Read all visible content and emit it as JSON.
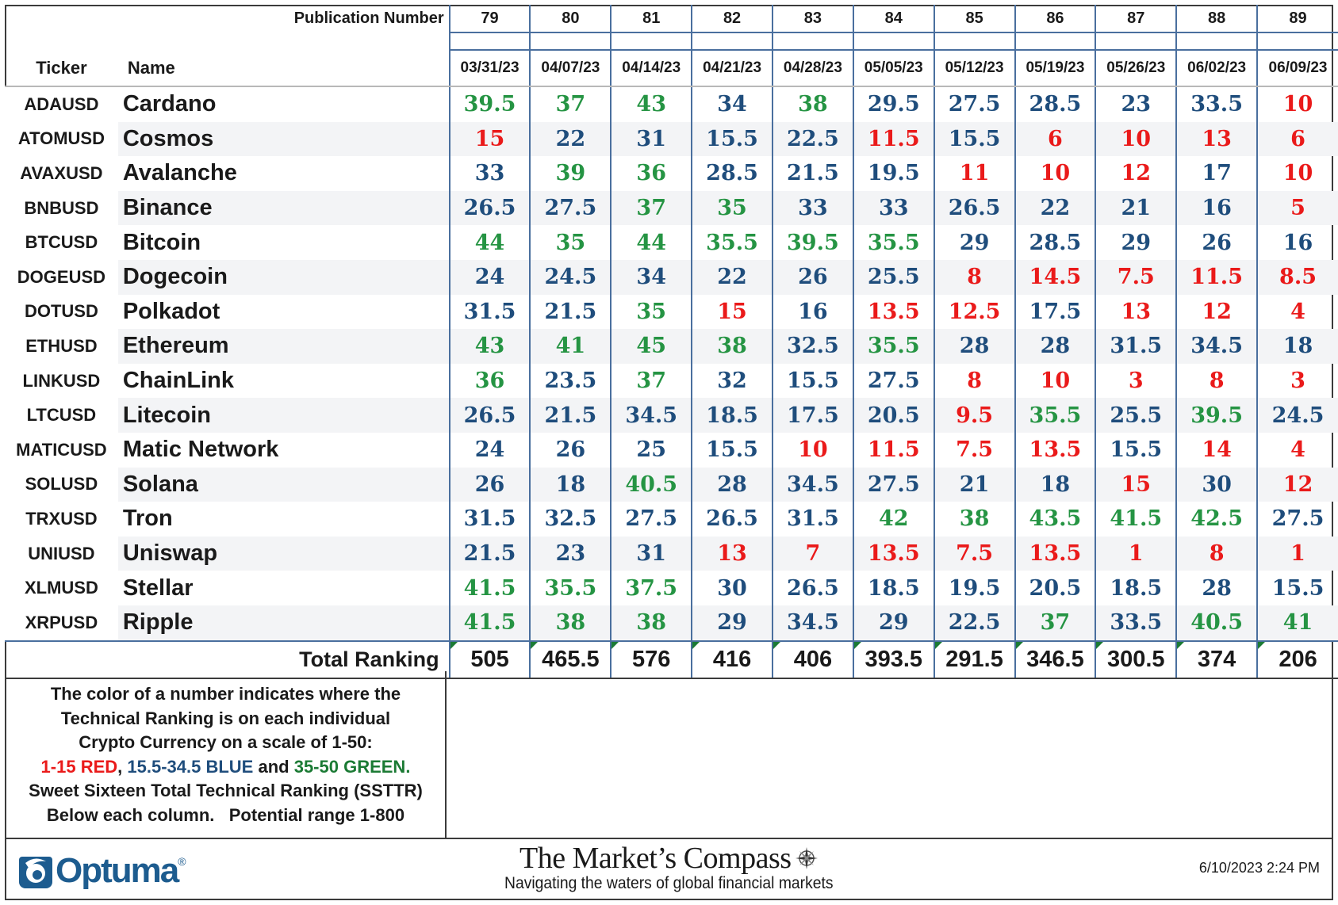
{
  "header": {
    "pub_label": "Publication Number",
    "ticker_label": "Ticker",
    "name_label": "Name"
  },
  "publications": [
    "79",
    "80",
    "81",
    "82",
    "83",
    "84",
    "85",
    "86",
    "87",
    "88",
    "89"
  ],
  "dates": [
    "03/31/23",
    "04/07/23",
    "04/14/23",
    "04/21/23",
    "04/28/23",
    "05/05/23",
    "05/12/23",
    "05/19/23",
    "05/26/23",
    "06/02/23",
    "06/09/23"
  ],
  "colors": {
    "red": "#ea1a1a",
    "blue": "#1f4d7c",
    "green": "#259443"
  },
  "chart_data": {
    "type": "table",
    "columns": [
      "03/31/23",
      "04/07/23",
      "04/14/23",
      "04/21/23",
      "04/28/23",
      "05/05/23",
      "05/12/23",
      "05/19/23",
      "05/26/23",
      "06/02/23",
      "06/09/23"
    ],
    "rows": [
      {
        "ticker": "ADAUSD",
        "name": "Cardano",
        "values": [
          "39.5",
          "37",
          "43",
          "34",
          "38",
          "29.5",
          "27.5",
          "28.5",
          "23",
          "33.5",
          "10"
        ]
      },
      {
        "ticker": "ATOMUSD",
        "name": "Cosmos",
        "values": [
          "15",
          "22",
          "31",
          "15.5",
          "22.5",
          "11.5",
          "15.5",
          "6",
          "10",
          "13",
          "6"
        ]
      },
      {
        "ticker": "AVAXUSD",
        "name": "Avalanche",
        "values": [
          "33",
          "39",
          "36",
          "28.5",
          "21.5",
          "19.5",
          "11",
          "10",
          "12",
          "17",
          "10"
        ]
      },
      {
        "ticker": "BNBUSD",
        "name": "Binance",
        "values": [
          "26.5",
          "27.5",
          "37",
          "35",
          "33",
          "33",
          "26.5",
          "22",
          "21",
          "16",
          "5"
        ]
      },
      {
        "ticker": "BTCUSD",
        "name": "Bitcoin",
        "values": [
          "44",
          "35",
          "44",
          "35.5",
          "39.5",
          "35.5",
          "29",
          "28.5",
          "29",
          "26",
          "16"
        ]
      },
      {
        "ticker": "DOGEUSD",
        "name": "Dogecoin",
        "values": [
          "24",
          "24.5",
          "34",
          "22",
          "26",
          "25.5",
          "8",
          "14.5",
          "7.5",
          "11.5",
          "8.5"
        ]
      },
      {
        "ticker": "DOTUSD",
        "name": "Polkadot",
        "values": [
          "31.5",
          "21.5",
          "35",
          "15",
          "16",
          "13.5",
          "12.5",
          "17.5",
          "13",
          "12",
          "4"
        ]
      },
      {
        "ticker": "ETHUSD",
        "name": "Ethereum",
        "values": [
          "43",
          "41",
          "45",
          "38",
          "32.5",
          "35.5",
          "28",
          "28",
          "31.5",
          "34.5",
          "18"
        ]
      },
      {
        "ticker": "LINKUSD",
        "name": "ChainLink",
        "values": [
          "36",
          "23.5",
          "37",
          "32",
          "15.5",
          "27.5",
          "8",
          "10",
          "3",
          "8",
          "3"
        ]
      },
      {
        "ticker": "LTCUSD",
        "name": "Litecoin",
        "values": [
          "26.5",
          "21.5",
          "34.5",
          "18.5",
          "17.5",
          "20.5",
          "9.5",
          "35.5",
          "25.5",
          "39.5",
          "24.5"
        ]
      },
      {
        "ticker": "MATICUSD",
        "name": "Matic Network",
        "values": [
          "24",
          "26",
          "25",
          "15.5",
          "10",
          "11.5",
          "7.5",
          "13.5",
          "15.5",
          "14",
          "4"
        ]
      },
      {
        "ticker": "SOLUSD",
        "name": "Solana",
        "values": [
          "26",
          "18",
          "40.5",
          "28",
          "34.5",
          "27.5",
          "21",
          "18",
          "15",
          "30",
          "12"
        ]
      },
      {
        "ticker": "TRXUSD",
        "name": "Tron",
        "values": [
          "31.5",
          "32.5",
          "27.5",
          "26.5",
          "31.5",
          "42",
          "38",
          "43.5",
          "41.5",
          "42.5",
          "27.5"
        ]
      },
      {
        "ticker": "UNIUSD",
        "name": "Uniswap",
        "values": [
          "21.5",
          "23",
          "31",
          "13",
          "7",
          "13.5",
          "7.5",
          "13.5",
          "1",
          "8",
          "1"
        ]
      },
      {
        "ticker": "XLMUSD",
        "name": "Stellar",
        "values": [
          "41.5",
          "35.5",
          "37.5",
          "30",
          "26.5",
          "18.5",
          "19.5",
          "20.5",
          "18.5",
          "28",
          "15.5"
        ]
      },
      {
        "ticker": "XRPUSD",
        "name": "Ripple",
        "values": [
          "41.5",
          "38",
          "38",
          "29",
          "34.5",
          "29",
          "22.5",
          "37",
          "33.5",
          "40.5",
          "41"
        ]
      }
    ],
    "total_label": "Total Ranking",
    "totals": [
      "505",
      "465.5",
      "576",
      "416",
      "406",
      "393.5",
      "291.5",
      "346.5",
      "300.5",
      "374",
      "206"
    ],
    "color_scale": {
      "red": [
        1,
        15
      ],
      "blue": [
        15.5,
        34.5
      ],
      "green": [
        35,
        50
      ]
    }
  },
  "note": {
    "line1": "The color of a number indicates where the",
    "line2": "Technical Ranking is on each individual",
    "line3": "Crypto Currency on a scale of 1-50:",
    "red_part": "1-15 RED",
    "comma": ",",
    "blue_part": "15.5-34.5 BLUE",
    "and": " and ",
    "green_part": "35-50 GREEN.",
    "line5": "Sweet Sixteen Total Technical Ranking (SSTTR)",
    "line6": "Below each column.   Potential range 1-800"
  },
  "footer": {
    "optuma_name": "Optuma",
    "optuma_reg": "®",
    "title": "The Market’s Compass",
    "subtitle": "Navigating the waters of global financial markets",
    "timestamp": "6/10/2023 2:24 PM"
  }
}
